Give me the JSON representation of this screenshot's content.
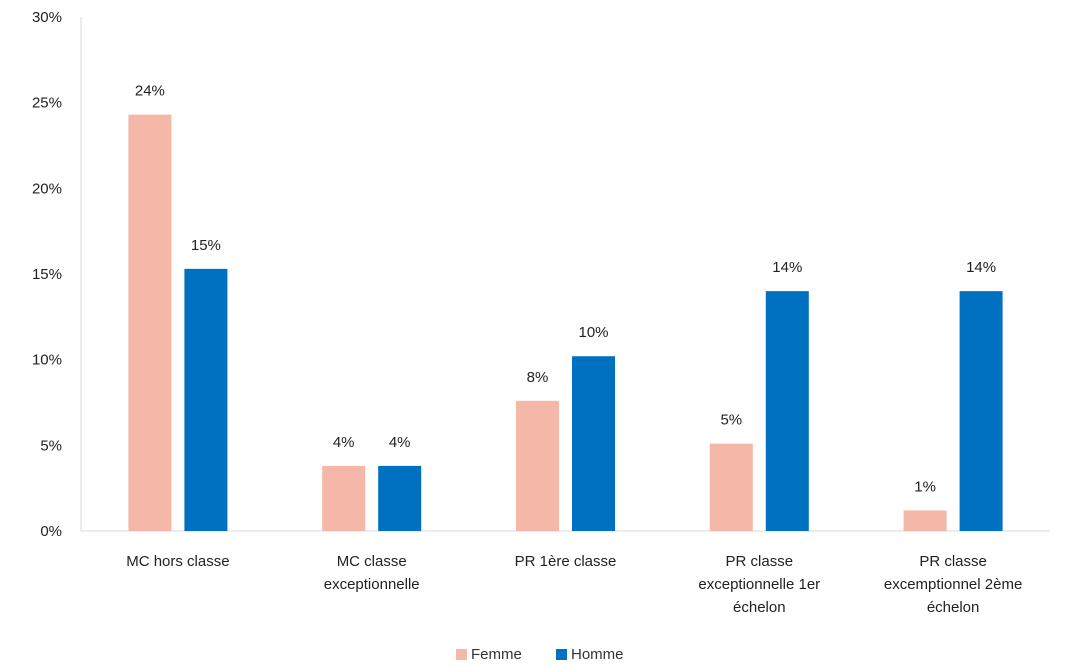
{
  "chart_data": {
    "type": "bar",
    "title": "",
    "xlabel": "",
    "ylabel": "",
    "ylim": [
      0,
      30
    ],
    "yticks": [
      "0%",
      "5%",
      "10%",
      "15%",
      "20%",
      "25%",
      "30%"
    ],
    "ytick_values": [
      0,
      5,
      10,
      15,
      20,
      25,
      30
    ],
    "grid": false,
    "legend_position": "bottom",
    "categories": [
      [
        "MC hors classe"
      ],
      [
        "MC classe",
        "exceptionnelle"
      ],
      [
        "PR 1ère classe"
      ],
      [
        "PR classe",
        "exceptionnelle  1er",
        "échelon"
      ],
      [
        "PR classe",
        "excemptionnel 2ème",
        "échelon"
      ]
    ],
    "series": [
      {
        "name": "Femme",
        "color": "#F4B7A8",
        "values": [
          24.3,
          3.8,
          7.6,
          5.1,
          1.2
        ],
        "labels": [
          "24%",
          "4%",
          "8%",
          "5%",
          "1%"
        ]
      },
      {
        "name": "Homme",
        "color": "#0070C0",
        "values": [
          15.3,
          3.8,
          10.2,
          14.0,
          14.0
        ],
        "labels": [
          "15%",
          "4%",
          "10%",
          "14%",
          "14%"
        ]
      }
    ]
  }
}
